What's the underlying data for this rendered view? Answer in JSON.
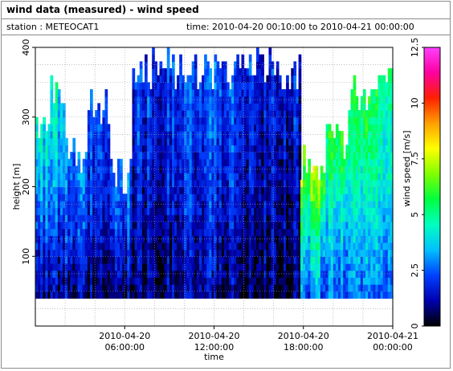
{
  "panel": {
    "title": "wind data (measured) - wind speed",
    "station": "station : METEOCAT1",
    "time_range": "time: 2010-04-20 00:10:00 to 2010-04-21 00:00:00"
  },
  "chart_data": {
    "type": "heatmap",
    "title": "wind data (measured) - wind speed",
    "xlabel": "time",
    "ylabel": "height [m]",
    "colorbar_label": "wind speed [m/s]",
    "xlim_hours": [
      0,
      24
    ],
    "ylim": [
      0,
      400
    ],
    "x_ticks": [
      {
        "hours": 6,
        "line1": "2010-04-20",
        "line2": "06:00:00"
      },
      {
        "hours": 12,
        "line1": "2010-04-20",
        "line2": "12:00:00"
      },
      {
        "hours": 18,
        "line1": "2010-04-20",
        "line2": "18:00:00"
      },
      {
        "hours": 24,
        "line1": "2010-04-21",
        "line2": "00:00:00"
      }
    ],
    "y_ticks": [
      100,
      200,
      300,
      400
    ],
    "colorbar_range": [
      0,
      12.5
    ],
    "colorbar_ticks": [
      "0",
      "2.5",
      "5",
      "7.5",
      "10",
      "12.5"
    ],
    "colorscale": [
      "#000000",
      "#0000b0",
      "#0040ff",
      "#00c0ff",
      "#00ffc0",
      "#00ff40",
      "#80ff00",
      "#ffff00",
      "#ffa000",
      "#ff2000",
      "#ff00a0",
      "#ff40ff"
    ],
    "grid": true,
    "time_step_hours": 0.1667,
    "height_min": 40,
    "height_step": 10,
    "time_segments": [
      {
        "t0": 0.0,
        "t1": 1.0,
        "top": 290,
        "low": 1.2,
        "mid": 3.0,
        "high": 4.8
      },
      {
        "t0": 1.0,
        "t1": 2.0,
        "top": 330,
        "low": 1.2,
        "mid": 3.0,
        "high": 4.5
      },
      {
        "t0": 2.0,
        "t1": 3.5,
        "top": 240,
        "low": 1.0,
        "mid": 2.2,
        "high": 3.0
      },
      {
        "t0": 3.5,
        "t1": 5.0,
        "top": 310,
        "low": 0.8,
        "mid": 2.0,
        "high": 2.6
      },
      {
        "t0": 5.0,
        "t1": 6.5,
        "top": 210,
        "low": 1.0,
        "mid": 2.2,
        "high": 2.8
      },
      {
        "t0": 6.5,
        "t1": 9.5,
        "top": 365,
        "low": 0.9,
        "mid": 1.6,
        "high": 2.2
      },
      {
        "t0": 9.5,
        "t1": 12.0,
        "top": 365,
        "low": 1.0,
        "mid": 1.8,
        "high": 2.4
      },
      {
        "t0": 12.0,
        "t1": 15.0,
        "top": 365,
        "low": 0.8,
        "mid": 1.7,
        "high": 2.3
      },
      {
        "t0": 15.0,
        "t1": 17.8,
        "top": 365,
        "low": 0.6,
        "mid": 1.2,
        "high": 1.8
      },
      {
        "t0": 17.8,
        "t1": 19.5,
        "top": 230,
        "low": 2.6,
        "mid": 4.5,
        "high": 7.2
      },
      {
        "t0": 19.5,
        "t1": 21.0,
        "top": 260,
        "low": 2.4,
        "mid": 4.0,
        "high": 5.8
      },
      {
        "t0": 21.0,
        "t1": 22.5,
        "top": 330,
        "low": 2.5,
        "mid": 4.0,
        "high": 5.5
      },
      {
        "t0": 22.5,
        "t1": 24.0,
        "top": 340,
        "low": 2.4,
        "mid": 4.2,
        "high": 5.2
      }
    ]
  }
}
